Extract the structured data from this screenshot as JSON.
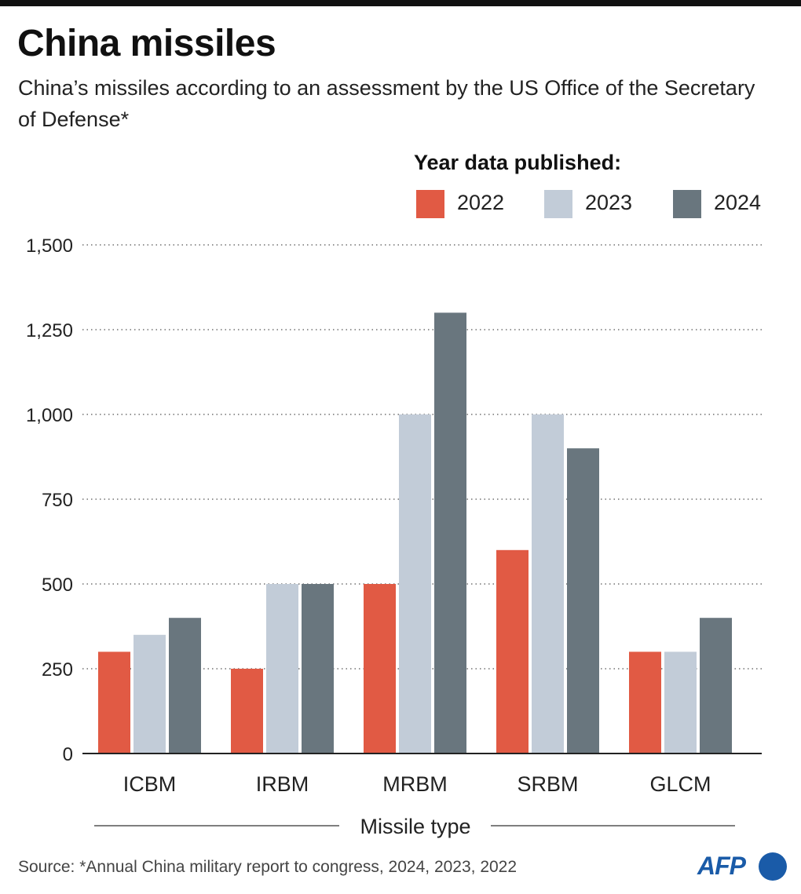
{
  "header": {
    "title": "China missiles",
    "subtitle": "China’s missiles according to an assessment by  the US Office of the Secretary of Defense*"
  },
  "legend": {
    "title": "Year data published:",
    "items": [
      {
        "label": "2022",
        "color": "#e15a44"
      },
      {
        "label": "2023",
        "color": "#c2ccd8"
      },
      {
        "label": "2024",
        "color": "#69767e"
      }
    ]
  },
  "chart_data": {
    "type": "bar",
    "title": "China missiles",
    "xlabel": "Missile type",
    "ylabel": "",
    "categories": [
      "ICBM",
      "IRBM",
      "MRBM",
      "SRBM",
      "GLCM"
    ],
    "series": [
      {
        "name": "2022",
        "values": [
          300,
          250,
          500,
          600,
          300
        ]
      },
      {
        "name": "2023",
        "values": [
          350,
          500,
          1000,
          1000,
          300
        ]
      },
      {
        "name": "2024",
        "values": [
          400,
          500,
          1300,
          900,
          400
        ]
      }
    ],
    "ylim": [
      0,
      1500
    ],
    "yticks": [
      0,
      250,
      500,
      750,
      1000,
      1250,
      1500
    ],
    "ytick_labels": [
      "0",
      "250",
      "500",
      "750",
      "1,000",
      "1,250",
      "1,500"
    ],
    "grid": true
  },
  "footer": {
    "source": "Source: *Annual China military report to congress, 2024, 2023, 2022",
    "logo": "AFP"
  }
}
